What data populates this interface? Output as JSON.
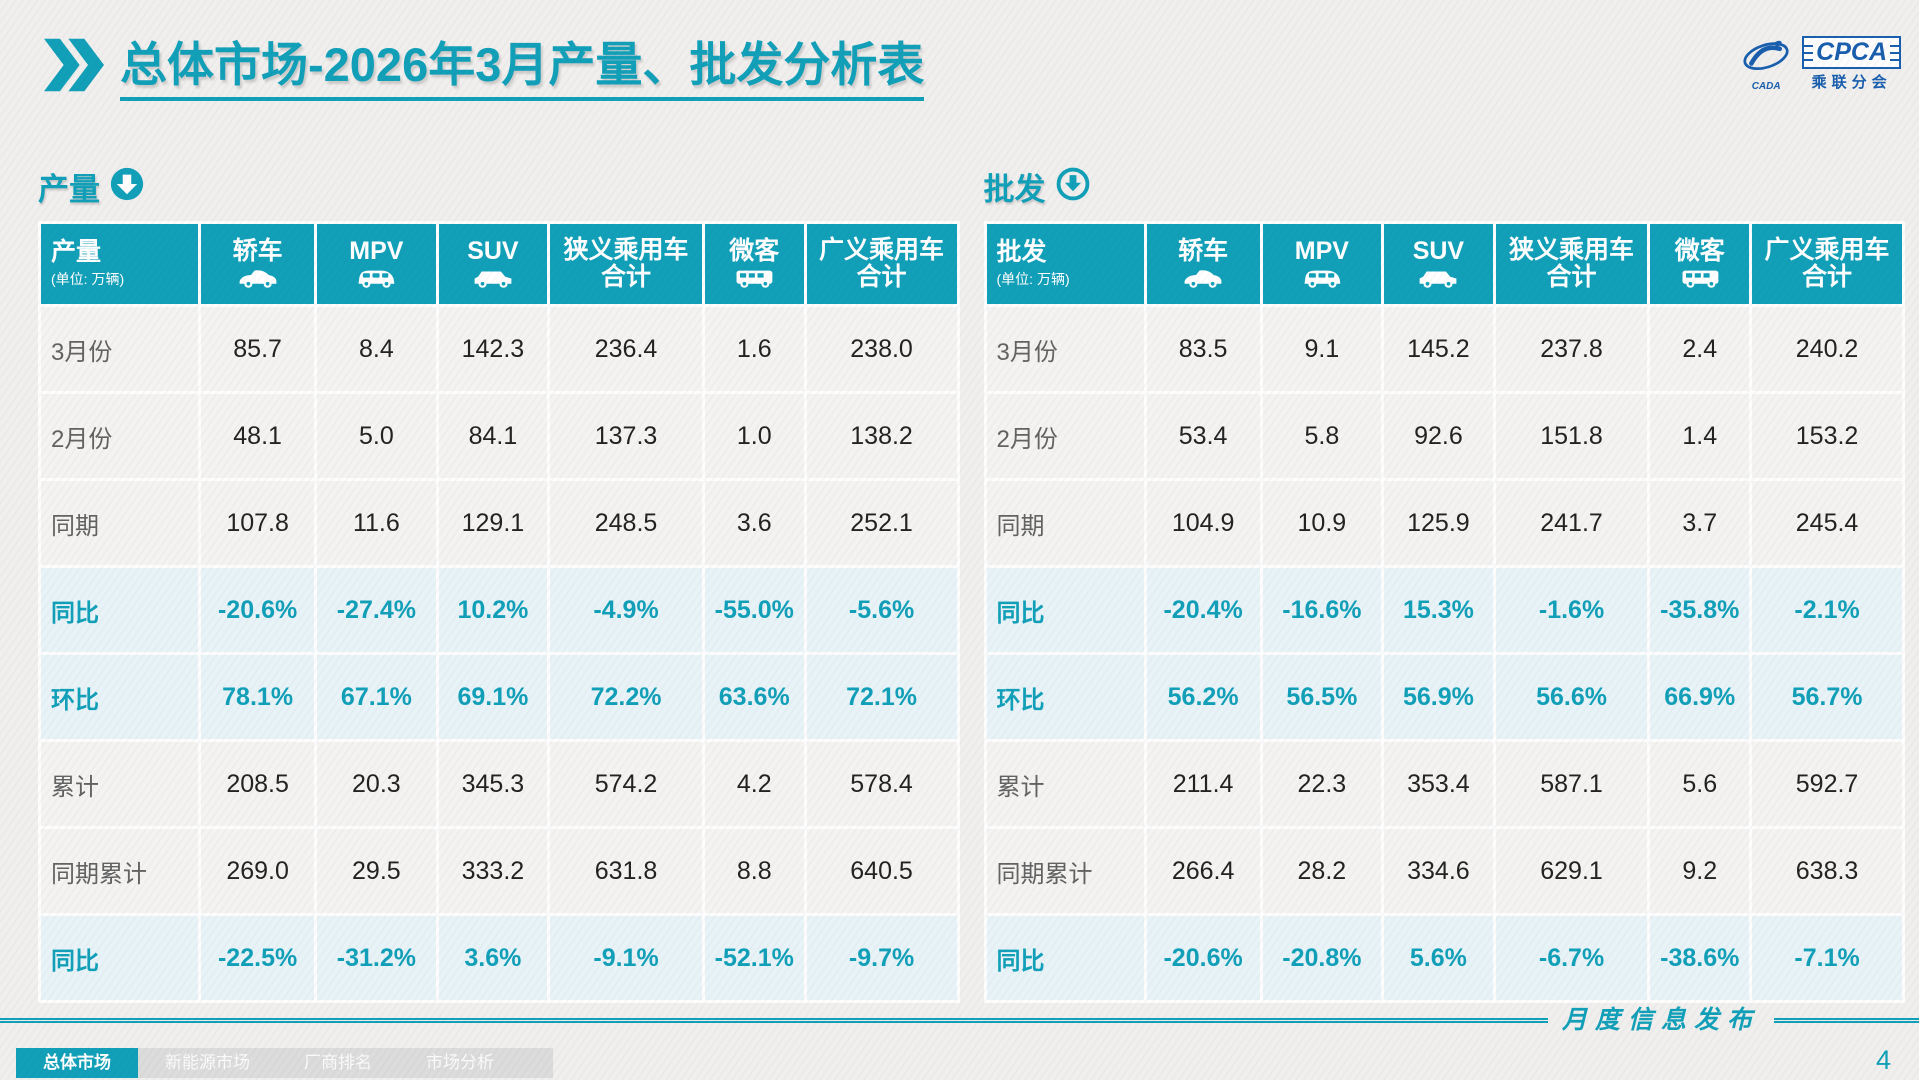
{
  "title": {
    "prefix": "总体市场",
    "rest": "-2026年3月产量、批发分析表"
  },
  "logo": {
    "cpca": "CPCA",
    "cn": "乘联分会",
    "cada": "CADA"
  },
  "watermark_text": "乘联分会",
  "colors": {
    "accent": "#12a0b9",
    "highlight_bg": "#e8f3f8",
    "logo_blue": "#1a5fae",
    "inactive_tab_bg": "#dcdcdc"
  },
  "tables": [
    {
      "id": "production",
      "section_title": "产量",
      "corner_label": "产量",
      "unit": "(单位: 万辆)",
      "columns": [
        {
          "label": "轿车",
          "icon": "sedan-icon"
        },
        {
          "label": "MPV",
          "icon": "mpv-icon"
        },
        {
          "label": "SUV",
          "icon": "suv-icon"
        },
        {
          "label": "狭义乘用车",
          "label2": "合计"
        },
        {
          "label": "微客",
          "icon": "minibus-icon"
        },
        {
          "label": "广义乘用车",
          "label2": "合计"
        }
      ],
      "rows": [
        {
          "label": "3月份",
          "highlight": false,
          "values": [
            "85.7",
            "8.4",
            "142.3",
            "236.4",
            "1.6",
            "238.0"
          ]
        },
        {
          "label": "2月份",
          "highlight": false,
          "values": [
            "48.1",
            "5.0",
            "84.1",
            "137.3",
            "1.0",
            "138.2"
          ]
        },
        {
          "label": "同期",
          "highlight": false,
          "values": [
            "107.8",
            "11.6",
            "129.1",
            "248.5",
            "3.6",
            "252.1"
          ]
        },
        {
          "label": "同比",
          "highlight": true,
          "values": [
            "-20.6%",
            "-27.4%",
            "10.2%",
            "-4.9%",
            "-55.0%",
            "-5.6%"
          ]
        },
        {
          "label": "环比",
          "highlight": true,
          "values": [
            "78.1%",
            "67.1%",
            "69.1%",
            "72.2%",
            "63.6%",
            "72.1%"
          ]
        },
        {
          "label": "累计",
          "highlight": false,
          "values": [
            "208.5",
            "20.3",
            "345.3",
            "574.2",
            "4.2",
            "578.4"
          ]
        },
        {
          "label": "同期累计",
          "highlight": false,
          "values": [
            "269.0",
            "29.5",
            "333.2",
            "631.8",
            "8.8",
            "640.5"
          ]
        },
        {
          "label": "同比",
          "highlight": true,
          "values": [
            "-22.5%",
            "-31.2%",
            "3.6%",
            "-9.1%",
            "-52.1%",
            "-9.7%"
          ]
        }
      ]
    },
    {
      "id": "wholesale",
      "section_title": "批发",
      "corner_label": "批发",
      "unit": "(单位: 万辆)",
      "columns": [
        {
          "label": "轿车",
          "icon": "sedan-icon"
        },
        {
          "label": "MPV",
          "icon": "mpv-icon"
        },
        {
          "label": "SUV",
          "icon": "suv-icon"
        },
        {
          "label": "狭义乘用车",
          "label2": "合计"
        },
        {
          "label": "微客",
          "icon": "minibus-icon"
        },
        {
          "label": "广义乘用车",
          "label2": "合计"
        }
      ],
      "rows": [
        {
          "label": "3月份",
          "highlight": false,
          "values": [
            "83.5",
            "9.1",
            "145.2",
            "237.8",
            "2.4",
            "240.2"
          ]
        },
        {
          "label": "2月份",
          "highlight": false,
          "values": [
            "53.4",
            "5.8",
            "92.6",
            "151.8",
            "1.4",
            "153.2"
          ]
        },
        {
          "label": "同期",
          "highlight": false,
          "values": [
            "104.9",
            "10.9",
            "125.9",
            "241.7",
            "3.7",
            "245.4"
          ]
        },
        {
          "label": "同比",
          "highlight": true,
          "values": [
            "-20.4%",
            "-16.6%",
            "15.3%",
            "-1.6%",
            "-35.8%",
            "-2.1%"
          ]
        },
        {
          "label": "环比",
          "highlight": true,
          "values": [
            "56.2%",
            "56.5%",
            "56.9%",
            "56.6%",
            "66.9%",
            "56.7%"
          ]
        },
        {
          "label": "累计",
          "highlight": false,
          "values": [
            "211.4",
            "22.3",
            "353.4",
            "587.1",
            "5.6",
            "592.7"
          ]
        },
        {
          "label": "同期累计",
          "highlight": false,
          "values": [
            "266.4",
            "28.2",
            "334.6",
            "629.1",
            "9.2",
            "638.3"
          ]
        },
        {
          "label": "同比",
          "highlight": true,
          "values": [
            "-20.6%",
            "-20.8%",
            "5.6%",
            "-6.7%",
            "-38.6%",
            "-7.1%"
          ]
        }
      ]
    }
  ],
  "footer": {
    "ribbon_text": "月度信息发布",
    "page_number": "4",
    "tabs": [
      {
        "label": "总体市场",
        "active": true
      },
      {
        "label": "新能源市场",
        "active": false
      },
      {
        "label": "厂商排名",
        "active": false
      },
      {
        "label": "市场分析",
        "active": false
      }
    ]
  }
}
